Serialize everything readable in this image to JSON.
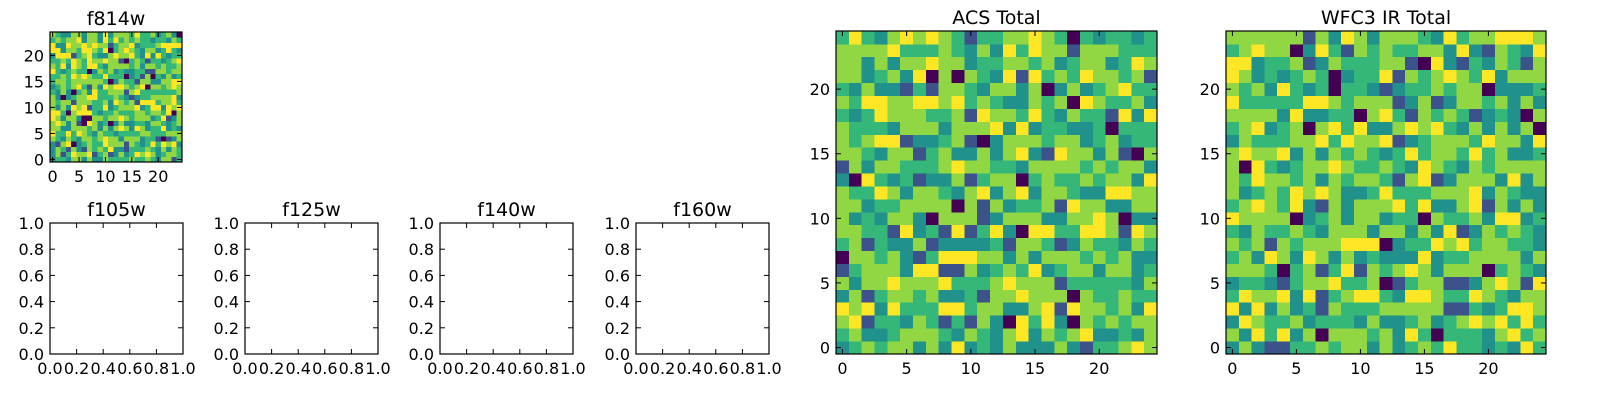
{
  "colormap": [
    "#440154",
    "#3b528b",
    "#21918c",
    "#35b779",
    "#90d743",
    "#fde725"
  ],
  "panels": [
    {
      "id": "f814w",
      "title": "f814w",
      "type": "heatmap",
      "x_range": [
        -0.5,
        24.5
      ],
      "y_range": [
        -0.5,
        24.5
      ],
      "xticks": [
        0,
        5,
        10,
        15,
        20
      ],
      "yticks": [
        0,
        5,
        10,
        15,
        20
      ],
      "seed": 11
    },
    {
      "id": "f105w",
      "title": "f105w",
      "type": "empty",
      "x_range": [
        0,
        1
      ],
      "y_range": [
        0,
        1
      ],
      "xticks": [
        "0.0",
        "0.2",
        "0.4",
        "0.6",
        "0.8",
        "1.0"
      ],
      "yticks": [
        "0.0",
        "0.2",
        "0.4",
        "0.6",
        "0.8",
        "1.0"
      ]
    },
    {
      "id": "f125w",
      "title": "f125w",
      "type": "empty",
      "x_range": [
        0,
        1
      ],
      "y_range": [
        0,
        1
      ],
      "xticks": [
        "0.0",
        "0.2",
        "0.4",
        "0.6",
        "0.8",
        "1.0"
      ],
      "yticks": [
        "0.0",
        "0.2",
        "0.4",
        "0.6",
        "0.8",
        "1.0"
      ]
    },
    {
      "id": "f140w",
      "title": "f140w",
      "type": "empty",
      "x_range": [
        0,
        1
      ],
      "y_range": [
        0,
        1
      ],
      "xticks": [
        "0.0",
        "0.2",
        "0.4",
        "0.6",
        "0.8",
        "1.0"
      ],
      "yticks": [
        "0.0",
        "0.2",
        "0.4",
        "0.6",
        "0.8",
        "1.0"
      ]
    },
    {
      "id": "f160w",
      "title": "f160w",
      "type": "empty",
      "x_range": [
        0,
        1
      ],
      "y_range": [
        0,
        1
      ],
      "xticks": [
        "0.0",
        "0.2",
        "0.4",
        "0.6",
        "0.8",
        "1.0"
      ],
      "yticks": [
        "0.0",
        "0.2",
        "0.4",
        "0.6",
        "0.8",
        "1.0"
      ]
    },
    {
      "id": "acs-total",
      "title": "ACS Total",
      "type": "heatmap",
      "x_range": [
        -0.5,
        24.5
      ],
      "y_range": [
        -0.5,
        24.5
      ],
      "xticks": [
        0,
        5,
        10,
        15,
        20
      ],
      "yticks": [
        0,
        5,
        10,
        15,
        20
      ],
      "seed": 23
    },
    {
      "id": "wfc3-ir-total",
      "title": "WFC3 IR Total",
      "type": "heatmap",
      "x_range": [
        -0.5,
        24.5
      ],
      "y_range": [
        -0.5,
        24.5
      ],
      "xticks": [
        0,
        5,
        10,
        15,
        20
      ],
      "yticks": [
        0,
        5,
        10,
        15,
        20
      ],
      "seed": 37
    }
  ],
  "chart_data": [
    {
      "type": "heatmap",
      "title": "f814w",
      "grid": [
        25,
        25
      ],
      "xlim": [
        -0.5,
        24.5
      ],
      "ylim": [
        -0.5,
        24.5
      ]
    },
    {
      "type": "table",
      "title": "f105w",
      "xlim": [
        0,
        1
      ],
      "ylim": [
        0,
        1
      ]
    },
    {
      "type": "table",
      "title": "f125w",
      "xlim": [
        0,
        1
      ],
      "ylim": [
        0,
        1
      ]
    },
    {
      "type": "table",
      "title": "f140w",
      "xlim": [
        0,
        1
      ],
      "ylim": [
        0,
        1
      ]
    },
    {
      "type": "table",
      "title": "f160w",
      "xlim": [
        0,
        1
      ],
      "ylim": [
        0,
        1
      ]
    },
    {
      "type": "heatmap",
      "title": "ACS Total",
      "grid": [
        25,
        25
      ],
      "xlim": [
        -0.5,
        24.5
      ],
      "ylim": [
        -0.5,
        24.5
      ]
    },
    {
      "type": "heatmap",
      "title": "WFC3 IR Total",
      "grid": [
        25,
        25
      ],
      "xlim": [
        -0.5,
        24.5
      ],
      "ylim": [
        -0.5,
        24.5
      ]
    }
  ]
}
